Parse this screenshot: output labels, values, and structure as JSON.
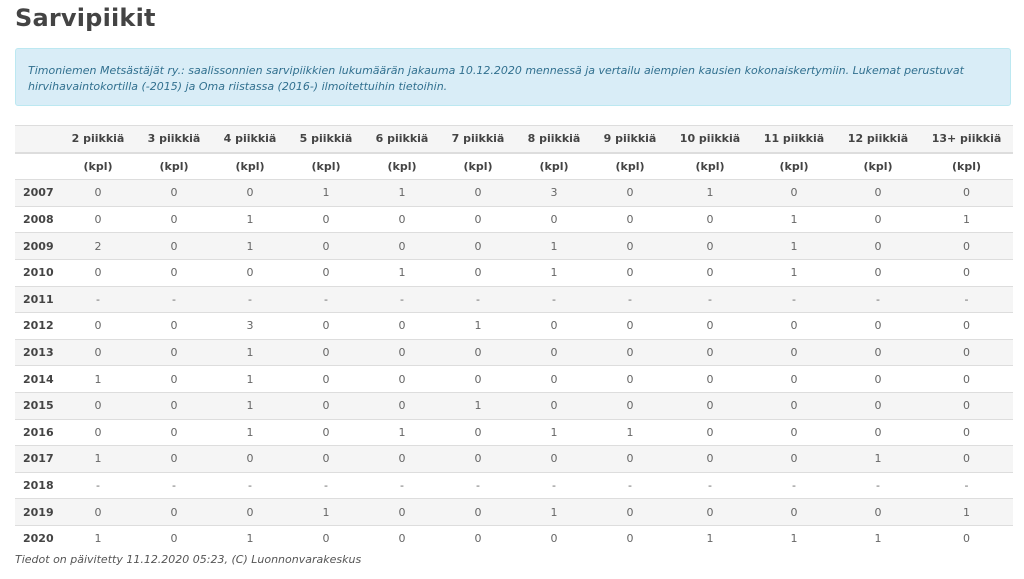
{
  "title": "Sarvipiikit",
  "info": "Timoniemen Metsästäjät ry.: saalissonnien sarvipiikkien lukumäärän jakauma 10.12.2020 mennessä ja vertailu aiempien kausien kokonaiskertymiin. Lukemat perustuvat hirvihavaintokortilla (-2015) ja Oma riistassa (2016-) ilmoitettuihin tietoihin.",
  "table": {
    "columns": [
      "2 piikkiä",
      "3 piikkiä",
      "4 piikkiä",
      "5 piikkiä",
      "6 piikkiä",
      "7 piikkiä",
      "8 piikkiä",
      "9 piikkiä",
      "10 piikkiä",
      "11 piikkiä",
      "12 piikkiä",
      "13+ piikkiä"
    ],
    "unit": "(kpl)",
    "rows": [
      {
        "year": "2007",
        "values": [
          "0",
          "0",
          "0",
          "1",
          "1",
          "0",
          "3",
          "0",
          "1",
          "0",
          "0",
          "0"
        ]
      },
      {
        "year": "2008",
        "values": [
          "0",
          "0",
          "1",
          "0",
          "0",
          "0",
          "0",
          "0",
          "0",
          "1",
          "0",
          "1"
        ]
      },
      {
        "year": "2009",
        "values": [
          "2",
          "0",
          "1",
          "0",
          "0",
          "0",
          "1",
          "0",
          "0",
          "1",
          "0",
          "0"
        ]
      },
      {
        "year": "2010",
        "values": [
          "0",
          "0",
          "0",
          "0",
          "1",
          "0",
          "1",
          "0",
          "0",
          "1",
          "0",
          "0"
        ]
      },
      {
        "year": "2011",
        "values": [
          "-",
          "-",
          "-",
          "-",
          "-",
          "-",
          "-",
          "-",
          "-",
          "-",
          "-",
          "-"
        ]
      },
      {
        "year": "2012",
        "values": [
          "0",
          "0",
          "3",
          "0",
          "0",
          "1",
          "0",
          "0",
          "0",
          "0",
          "0",
          "0"
        ]
      },
      {
        "year": "2013",
        "values": [
          "0",
          "0",
          "1",
          "0",
          "0",
          "0",
          "0",
          "0",
          "0",
          "0",
          "0",
          "0"
        ]
      },
      {
        "year": "2014",
        "values": [
          "1",
          "0",
          "1",
          "0",
          "0",
          "0",
          "0",
          "0",
          "0",
          "0",
          "0",
          "0"
        ]
      },
      {
        "year": "2015",
        "values": [
          "0",
          "0",
          "1",
          "0",
          "0",
          "1",
          "0",
          "0",
          "0",
          "0",
          "0",
          "0"
        ]
      },
      {
        "year": "2016",
        "values": [
          "0",
          "0",
          "1",
          "0",
          "1",
          "0",
          "1",
          "1",
          "0",
          "0",
          "0",
          "0"
        ]
      },
      {
        "year": "2017",
        "values": [
          "1",
          "0",
          "0",
          "0",
          "0",
          "0",
          "0",
          "0",
          "0",
          "0",
          "1",
          "0"
        ]
      },
      {
        "year": "2018",
        "values": [
          "-",
          "-",
          "-",
          "-",
          "-",
          "-",
          "-",
          "-",
          "-",
          "-",
          "-",
          "-"
        ]
      },
      {
        "year": "2019",
        "values": [
          "0",
          "0",
          "0",
          "1",
          "0",
          "0",
          "1",
          "0",
          "0",
          "0",
          "0",
          "1"
        ]
      },
      {
        "year": "2020",
        "values": [
          "1",
          "0",
          "1",
          "0",
          "0",
          "0",
          "0",
          "0",
          "1",
          "1",
          "1",
          "0"
        ]
      }
    ]
  },
  "footer": "Tiedot on päivitetty 11.12.2020 05:23, (C) Luonnonvarakeskus"
}
